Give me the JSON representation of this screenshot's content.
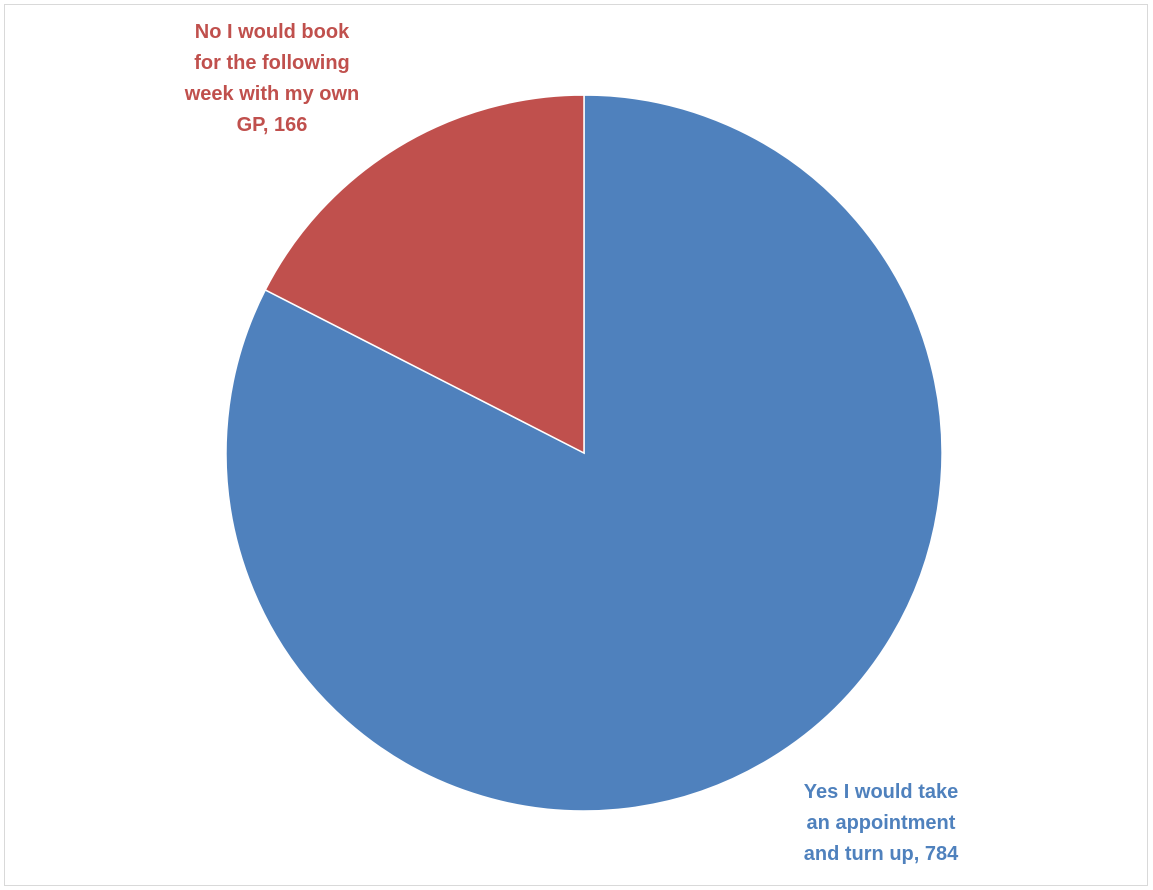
{
  "chart_data": {
    "type": "pie",
    "title": "",
    "slices": [
      {
        "label": "Yes I would take an appointment and turn up",
        "value": 784,
        "color": "#4F81BD",
        "data_label_lines": [
          "Yes I would take",
          "an appointment",
          "and turn up, 784"
        ]
      },
      {
        "label": "No I would book for the following week with my own GP",
        "value": 166,
        "color": "#C0504D",
        "data_label_lines": [
          "No I would book",
          "for the following",
          "week with my own",
          "GP, 166"
        ]
      }
    ],
    "start_angle": "12 o'clock",
    "direction": "clockwise",
    "legend": "none"
  }
}
